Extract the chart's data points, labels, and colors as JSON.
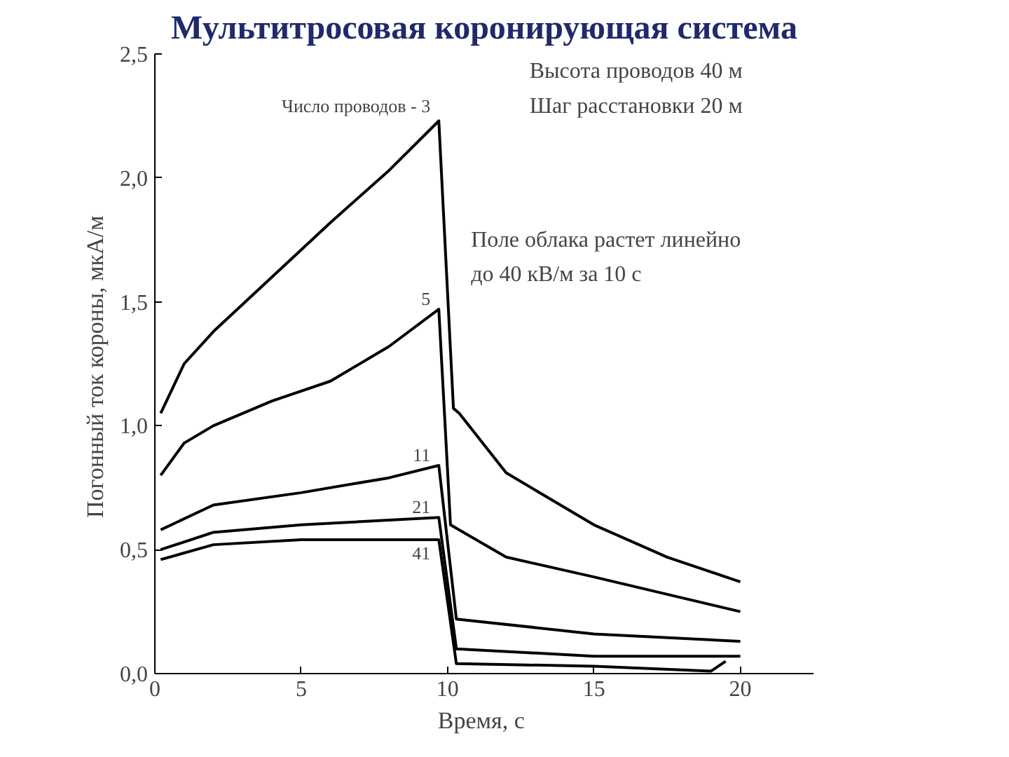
{
  "chart_data": {
    "type": "line",
    "title": "Мультитросовая коронирующая система",
    "xlabel": "Время,  с",
    "ylabel": "Погонный ток короны,  мкА/м",
    "xlim": [
      0,
      22.5
    ],
    "ylim": [
      0,
      2.5
    ],
    "xticks": [
      0,
      5,
      10,
      15,
      20
    ],
    "yticks": [
      {
        "value": 0,
        "label": "0,0"
      },
      {
        "value": 0.5,
        "label": "0,5"
      },
      {
        "value": 1,
        "label": "1,0"
      },
      {
        "value": 1.5,
        "label": "1,5"
      },
      {
        "value": 2,
        "label": "2,0"
      },
      {
        "value": 2.5,
        "label": "2,5"
      }
    ],
    "grid": false,
    "annotations": [
      "Высота проводов  40 м",
      "Шаг расстановки   20 м",
      "Поле облака растет линейно",
      "до 40 кВ/м за 10 с"
    ],
    "series": [
      {
        "name": "Число проводов - 3",
        "color": "#000000",
        "x": [
          0.2,
          1,
          2,
          4,
          6,
          8,
          9.7,
          10.2,
          10.4,
          12,
          15,
          17.5,
          20
        ],
        "values": [
          1.05,
          1.25,
          1.38,
          1.6,
          1.82,
          2.03,
          2.23,
          1.07,
          1.05,
          0.81,
          0.6,
          0.47,
          0.37
        ]
      },
      {
        "name": "5",
        "color": "#000000",
        "x": [
          0.2,
          1,
          2,
          4,
          6,
          8,
          9.7,
          10.1,
          12,
          15,
          20
        ],
        "values": [
          0.8,
          0.93,
          1.0,
          1.1,
          1.18,
          1.32,
          1.47,
          0.6,
          0.47,
          0.39,
          0.25
        ]
      },
      {
        "name": "11",
        "color": "#000000",
        "x": [
          0.2,
          2,
          5,
          8,
          9.7,
          10.3,
          15,
          20
        ],
        "values": [
          0.58,
          0.68,
          0.73,
          0.79,
          0.84,
          0.22,
          0.16,
          0.13
        ]
      },
      {
        "name": "21",
        "color": "#000000",
        "x": [
          0.2,
          2,
          5,
          9.7,
          10.3,
          15,
          20
        ],
        "values": [
          0.5,
          0.57,
          0.6,
          0.63,
          0.1,
          0.07,
          0.07
        ]
      },
      {
        "name": "41",
        "color": "#000000",
        "x": [
          0.2,
          2,
          5,
          9.7,
          10.3,
          15,
          19,
          19.5
        ],
        "values": [
          0.46,
          0.52,
          0.54,
          0.54,
          0.04,
          0.03,
          0.01,
          0.05
        ]
      }
    ]
  }
}
